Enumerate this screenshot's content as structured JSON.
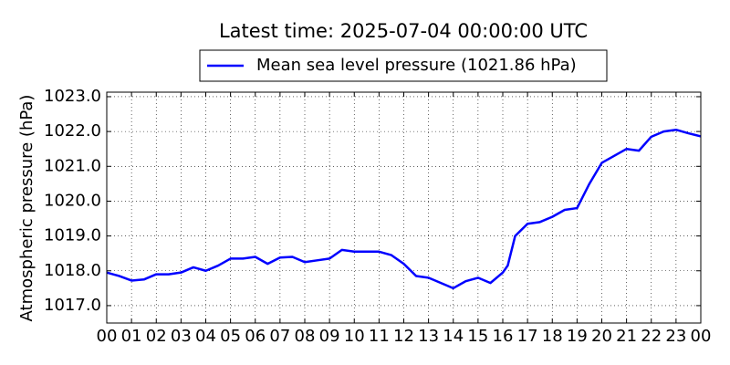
{
  "chart_data": {
    "type": "line",
    "title": "Latest time: 2025-07-04 00:00:00 UTC",
    "y_label": "Atmospheric pressure (hPa)",
    "x": [
      0,
      0.5,
      1,
      1.5,
      2,
      2.5,
      3,
      3.5,
      4,
      4.5,
      5,
      5.5,
      6,
      6.5,
      7,
      7.5,
      8,
      8.5,
      9,
      9.5,
      10,
      10.5,
      11,
      11.5,
      12,
      12.5,
      13,
      13.5,
      14,
      14.5,
      15,
      15.5,
      16,
      16.2,
      16.5,
      17,
      17.5,
      18,
      18.5,
      19,
      19.5,
      20,
      20.5,
      21,
      21.5,
      22,
      22.5,
      23,
      23.5,
      24
    ],
    "series": [
      {
        "name": "Mean sea level pressure (1021.86 hPa)",
        "color": "#0000ff",
        "values": [
          1017.95,
          1017.85,
          1017.72,
          1017.75,
          1017.9,
          1017.9,
          1017.95,
          1018.1,
          1018.0,
          1018.15,
          1018.35,
          1018.35,
          1018.4,
          1018.2,
          1018.38,
          1018.4,
          1018.25,
          1018.3,
          1018.35,
          1018.6,
          1018.55,
          1018.55,
          1018.55,
          1018.45,
          1018.2,
          1017.85,
          1017.8,
          1017.65,
          1017.5,
          1017.7,
          1017.8,
          1017.65,
          1017.95,
          1018.15,
          1019.0,
          1019.35,
          1019.4,
          1019.55,
          1019.75,
          1019.8,
          1020.5,
          1021.1,
          1021.3,
          1021.5,
          1021.45,
          1021.85,
          1022.0,
          1022.05,
          1021.95,
          1021.86
        ]
      }
    ],
    "xlim": [
      0,
      24
    ],
    "xticks": [
      {
        "value": 0,
        "label": "00"
      },
      {
        "value": 1,
        "label": "01"
      },
      {
        "value": 2,
        "label": "02"
      },
      {
        "value": 3,
        "label": "03"
      },
      {
        "value": 4,
        "label": "04"
      },
      {
        "value": 5,
        "label": "05"
      },
      {
        "value": 6,
        "label": "06"
      },
      {
        "value": 7,
        "label": "07"
      },
      {
        "value": 8,
        "label": "08"
      },
      {
        "value": 9,
        "label": "09"
      },
      {
        "value": 10,
        "label": "10"
      },
      {
        "value": 11,
        "label": "11"
      },
      {
        "value": 12,
        "label": "12"
      },
      {
        "value": 13,
        "label": "13"
      },
      {
        "value": 14,
        "label": "14"
      },
      {
        "value": 15,
        "label": "15"
      },
      {
        "value": 16,
        "label": "16"
      },
      {
        "value": 17,
        "label": "17"
      },
      {
        "value": 18,
        "label": "18"
      },
      {
        "value": 19,
        "label": "19"
      },
      {
        "value": 20,
        "label": "20"
      },
      {
        "value": 21,
        "label": "21"
      },
      {
        "value": 22,
        "label": "22"
      },
      {
        "value": 23,
        "label": "23"
      },
      {
        "value": 24,
        "label": "00"
      }
    ],
    "ylim": [
      1016.5,
      1023.13
    ],
    "yticks": [
      {
        "value": 1017,
        "label": "1017.0"
      },
      {
        "value": 1018,
        "label": "1018.0"
      },
      {
        "value": 1019,
        "label": "1019.0"
      },
      {
        "value": 1020,
        "label": "1020.0"
      },
      {
        "value": 1021,
        "label": "1021.0"
      },
      {
        "value": 1022,
        "label": "1022.0"
      },
      {
        "value": 1023,
        "label": "1023.0"
      }
    ],
    "grid": true
  }
}
